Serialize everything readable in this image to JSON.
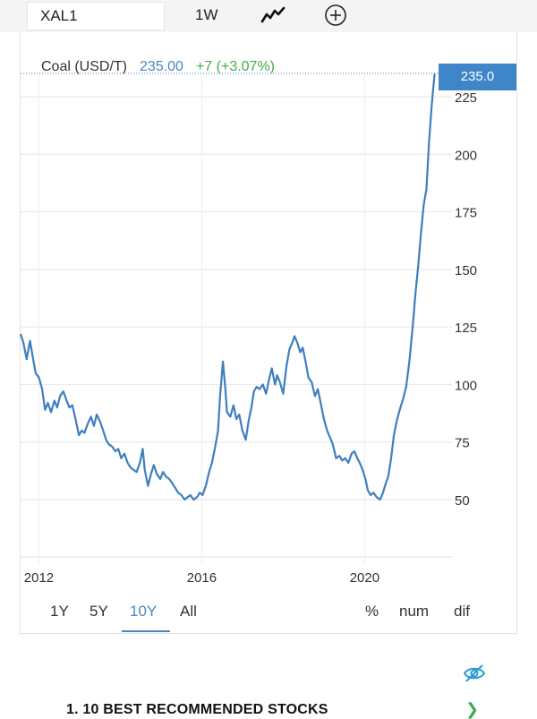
{
  "toolbar": {
    "symbol": "XAL1",
    "interval": "1W",
    "chart_type_icon": "line-chart-icon",
    "add_icon": "plus-circle-icon"
  },
  "legend": {
    "name": "Coal (USD/T)",
    "price": "235.00",
    "change": "+7 (+3.07%)",
    "price_color": "#4a86c0",
    "change_color": "#3fae49"
  },
  "last_value_badge": "235.0",
  "range_buttons": [
    {
      "label": "1Y"
    },
    {
      "label": "5Y"
    },
    {
      "label": "10Y",
      "active": true
    },
    {
      "label": "All"
    }
  ],
  "display_buttons": [
    {
      "label": "%"
    },
    {
      "label": "num"
    },
    {
      "label": "dif"
    }
  ],
  "ad": {
    "label": "1.  10 BEST RECOMMENDED STOCKS",
    "hide_icon": "eye-slash-icon",
    "chevron_icon": "chevron-right-icon"
  },
  "chart_data": {
    "type": "line",
    "series_color": "#3e7fbf",
    "ylim": [
      30,
      235
    ],
    "y_ticks": [
      50,
      75,
      100,
      125,
      150,
      175,
      200,
      225
    ],
    "x_ticks": [
      {
        "label": "2012",
        "x": 2012
      },
      {
        "label": "2016",
        "x": 2016
      },
      {
        "label": "2020",
        "x": 2020
      }
    ],
    "xlim": [
      2011.55,
      2021.75
    ],
    "points": [
      [
        2011.55,
        122
      ],
      [
        2011.62,
        118
      ],
      [
        2011.7,
        111
      ],
      [
        2011.78,
        119
      ],
      [
        2011.85,
        112
      ],
      [
        2011.92,
        105
      ],
      [
        2012.0,
        103
      ],
      [
        2012.08,
        98
      ],
      [
        2012.15,
        89
      ],
      [
        2012.22,
        92
      ],
      [
        2012.3,
        88
      ],
      [
        2012.38,
        93
      ],
      [
        2012.45,
        90
      ],
      [
        2012.52,
        95
      ],
      [
        2012.6,
        97
      ],
      [
        2012.68,
        93
      ],
      [
        2012.75,
        90
      ],
      [
        2012.82,
        91
      ],
      [
        2012.9,
        85
      ],
      [
        2012.98,
        78
      ],
      [
        2013.05,
        80
      ],
      [
        2013.12,
        79
      ],
      [
        2013.2,
        83
      ],
      [
        2013.28,
        86
      ],
      [
        2013.35,
        82
      ],
      [
        2013.42,
        87
      ],
      [
        2013.5,
        84
      ],
      [
        2013.58,
        80
      ],
      [
        2013.65,
        76
      ],
      [
        2013.72,
        74
      ],
      [
        2013.8,
        73
      ],
      [
        2013.88,
        71
      ],
      [
        2013.95,
        72
      ],
      [
        2014.02,
        68
      ],
      [
        2014.1,
        70
      ],
      [
        2014.18,
        66
      ],
      [
        2014.25,
        64
      ],
      [
        2014.32,
        63
      ],
      [
        2014.4,
        62
      ],
      [
        2014.48,
        66
      ],
      [
        2014.55,
        72
      ],
      [
        2014.6,
        63
      ],
      [
        2014.68,
        56
      ],
      [
        2014.75,
        61
      ],
      [
        2014.82,
        65
      ],
      [
        2014.9,
        61
      ],
      [
        2014.98,
        59
      ],
      [
        2015.05,
        62
      ],
      [
        2015.12,
        60
      ],
      [
        2015.2,
        59
      ],
      [
        2015.28,
        57
      ],
      [
        2015.35,
        55
      ],
      [
        2015.42,
        53
      ],
      [
        2015.5,
        52
      ],
      [
        2015.58,
        50
      ],
      [
        2015.65,
        51
      ],
      [
        2015.72,
        52
      ],
      [
        2015.8,
        50
      ],
      [
        2015.88,
        51
      ],
      [
        2015.95,
        53
      ],
      [
        2016.02,
        52
      ],
      [
        2016.1,
        56
      ],
      [
        2016.18,
        62
      ],
      [
        2016.25,
        66
      ],
      [
        2016.32,
        72
      ],
      [
        2016.4,
        80
      ],
      [
        2016.45,
        95
      ],
      [
        2016.52,
        110
      ],
      [
        2016.58,
        98
      ],
      [
        2016.62,
        88
      ],
      [
        2016.7,
        86
      ],
      [
        2016.78,
        91
      ],
      [
        2016.85,
        85
      ],
      [
        2016.92,
        87
      ],
      [
        2017.0,
        80
      ],
      [
        2017.08,
        76
      ],
      [
        2017.15,
        84
      ],
      [
        2017.22,
        90
      ],
      [
        2017.28,
        97
      ],
      [
        2017.35,
        99
      ],
      [
        2017.42,
        98
      ],
      [
        2017.5,
        100
      ],
      [
        2017.58,
        96
      ],
      [
        2017.65,
        102
      ],
      [
        2017.72,
        107
      ],
      [
        2017.8,
        100
      ],
      [
        2017.85,
        104
      ],
      [
        2017.92,
        101
      ],
      [
        2018.0,
        96
      ],
      [
        2018.08,
        108
      ],
      [
        2018.15,
        115
      ],
      [
        2018.22,
        118
      ],
      [
        2018.28,
        121
      ],
      [
        2018.35,
        118
      ],
      [
        2018.42,
        114
      ],
      [
        2018.48,
        116
      ],
      [
        2018.55,
        110
      ],
      [
        2018.62,
        103
      ],
      [
        2018.7,
        101
      ],
      [
        2018.78,
        95
      ],
      [
        2018.85,
        98
      ],
      [
        2018.92,
        92
      ],
      [
        2019.0,
        85
      ],
      [
        2019.08,
        80
      ],
      [
        2019.15,
        77
      ],
      [
        2019.22,
        74
      ],
      [
        2019.3,
        68
      ],
      [
        2019.38,
        69
      ],
      [
        2019.45,
        67
      ],
      [
        2019.52,
        68
      ],
      [
        2019.6,
        66
      ],
      [
        2019.68,
        70
      ],
      [
        2019.75,
        71
      ],
      [
        2019.82,
        68
      ],
      [
        2019.88,
        66
      ],
      [
        2019.95,
        63
      ],
      [
        2020.02,
        59
      ],
      [
        2020.08,
        54
      ],
      [
        2020.15,
        52
      ],
      [
        2020.22,
        53
      ],
      [
        2020.3,
        51
      ],
      [
        2020.38,
        50
      ],
      [
        2020.45,
        53
      ],
      [
        2020.52,
        57
      ],
      [
        2020.58,
        60
      ],
      [
        2020.65,
        68
      ],
      [
        2020.72,
        78
      ],
      [
        2020.8,
        85
      ],
      [
        2020.88,
        90
      ],
      [
        2020.95,
        94
      ],
      [
        2021.02,
        99
      ],
      [
        2021.1,
        110
      ],
      [
        2021.18,
        125
      ],
      [
        2021.25,
        140
      ],
      [
        2021.32,
        152
      ],
      [
        2021.38,
        165
      ],
      [
        2021.45,
        178
      ],
      [
        2021.52,
        185
      ],
      [
        2021.58,
        205
      ],
      [
        2021.65,
        222
      ],
      [
        2021.72,
        235
      ]
    ]
  }
}
